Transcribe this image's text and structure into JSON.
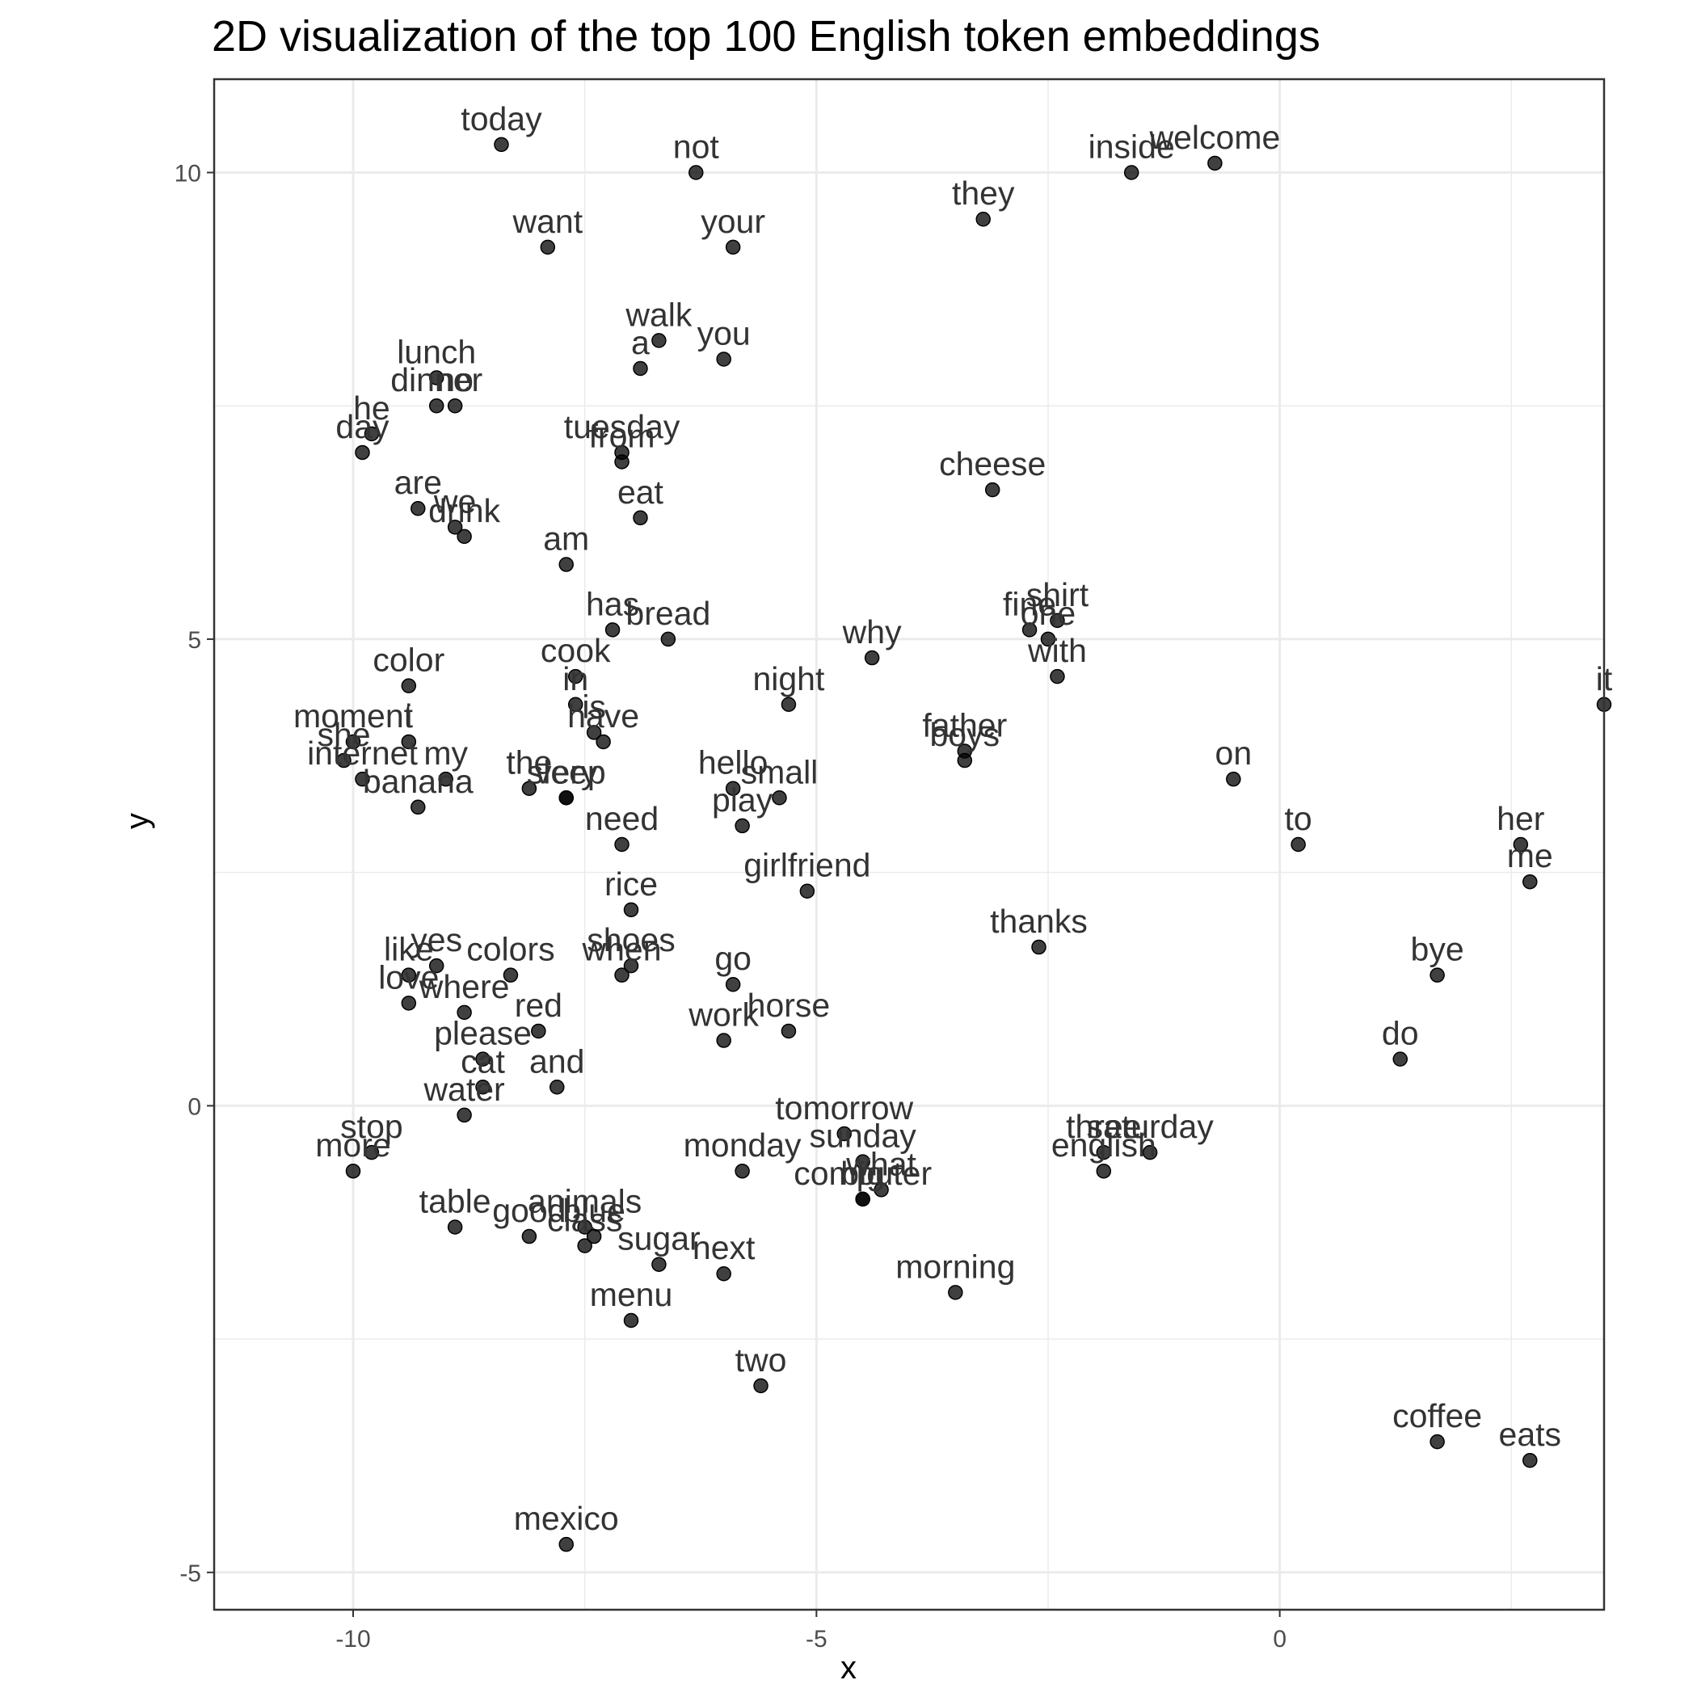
{
  "chart_data": {
    "type": "scatter",
    "title": "2D visualization of the top 100 English token embeddings",
    "xlabel": "x",
    "ylabel": "y",
    "xlim": [
      -11.5,
      3.5
    ],
    "ylim": [
      -5.4,
      11
    ],
    "xticks": [
      -10,
      -5,
      0
    ],
    "yticks": [
      -5,
      0,
      5,
      10
    ],
    "grid": true,
    "points": [
      {
        "label": "today",
        "x": -8.4,
        "y": 10.3
      },
      {
        "label": "not",
        "x": -6.3,
        "y": 10.0
      },
      {
        "label": "welcome",
        "x": -0.7,
        "y": 10.1
      },
      {
        "label": "inside",
        "x": -1.6,
        "y": 10.0
      },
      {
        "label": "they",
        "x": -3.2,
        "y": 9.5
      },
      {
        "label": "want",
        "x": -7.9,
        "y": 9.2
      },
      {
        "label": "your",
        "x": -5.9,
        "y": 9.2
      },
      {
        "label": "walk",
        "x": -6.7,
        "y": 8.2
      },
      {
        "label": "you",
        "x": -6.0,
        "y": 8.0
      },
      {
        "label": "a",
        "x": -6.9,
        "y": 7.9
      },
      {
        "label": "lunch",
        "x": -9.1,
        "y": 7.8
      },
      {
        "label": "no",
        "x": -8.9,
        "y": 7.5
      },
      {
        "label": "he",
        "x": -9.8,
        "y": 7.2
      },
      {
        "label": "dinner",
        "x": -9.1,
        "y": 7.5
      },
      {
        "label": "day",
        "x": -9.9,
        "y": 7.0
      },
      {
        "label": "tuesday",
        "x": -7.1,
        "y": 7.0
      },
      {
        "label": "from",
        "x": -7.1,
        "y": 6.9
      },
      {
        "label": "cheese",
        "x": -3.1,
        "y": 6.6
      },
      {
        "label": "are",
        "x": -9.3,
        "y": 6.4
      },
      {
        "label": "eat",
        "x": -6.9,
        "y": 6.3
      },
      {
        "label": "we",
        "x": -8.9,
        "y": 6.2
      },
      {
        "label": "drink",
        "x": -8.8,
        "y": 6.1
      },
      {
        "label": "am",
        "x": -7.7,
        "y": 5.8
      },
      {
        "label": "has",
        "x": -7.2,
        "y": 5.1
      },
      {
        "label": "bread",
        "x": -6.6,
        "y": 5.0
      },
      {
        "label": "fine",
        "x": -2.7,
        "y": 5.1
      },
      {
        "label": "shirt",
        "x": -2.4,
        "y": 5.2
      },
      {
        "label": "one",
        "x": -2.5,
        "y": 5.0
      },
      {
        "label": "why",
        "x": -4.4,
        "y": 4.8
      },
      {
        "label": "with",
        "x": -2.4,
        "y": 4.6
      },
      {
        "label": "cook",
        "x": -7.6,
        "y": 4.6
      },
      {
        "label": "in",
        "x": -7.6,
        "y": 4.3
      },
      {
        "label": "color",
        "x": -9.4,
        "y": 4.5
      },
      {
        "label": "night",
        "x": -5.3,
        "y": 4.3
      },
      {
        "label": "it",
        "x": 3.5,
        "y": 4.3
      },
      {
        "label": "is",
        "x": -7.4,
        "y": 4.0
      },
      {
        "label": "the",
        "x": -8.1,
        "y": 3.4
      },
      {
        "label": "have",
        "x": -7.3,
        "y": 3.9
      },
      {
        "label": "moment",
        "x": -10.0,
        "y": 3.9
      },
      {
        "label": "i",
        "x": -9.4,
        "y": 3.9
      },
      {
        "label": "father",
        "x": -3.4,
        "y": 3.8
      },
      {
        "label": "hello",
        "x": -5.9,
        "y": 3.4
      },
      {
        "label": "boys",
        "x": -3.4,
        "y": 3.7
      },
      {
        "label": "on",
        "x": -0.5,
        "y": 3.5
      },
      {
        "label": "she",
        "x": -10.1,
        "y": 3.7
      },
      {
        "label": "internet",
        "x": -9.9,
        "y": 3.5
      },
      {
        "label": "very",
        "x": -7.7,
        "y": 3.3
      },
      {
        "label": "my",
        "x": -9.0,
        "y": 3.5
      },
      {
        "label": "small",
        "x": -5.4,
        "y": 3.3
      },
      {
        "label": "banana",
        "x": -9.3,
        "y": 3.2
      },
      {
        "label": "sleep",
        "x": -7.7,
        "y": 3.3
      },
      {
        "label": "need",
        "x": -7.1,
        "y": 2.8
      },
      {
        "label": "play",
        "x": -5.8,
        "y": 3.0
      },
      {
        "label": "to",
        "x": 0.2,
        "y": 2.8
      },
      {
        "label": "her",
        "x": 2.6,
        "y": 2.8
      },
      {
        "label": "me",
        "x": 2.7,
        "y": 2.4
      },
      {
        "label": "girlfriend",
        "x": -5.1,
        "y": 2.3
      },
      {
        "label": "rice",
        "x": -7.0,
        "y": 2.1
      },
      {
        "label": "thanks",
        "x": -2.6,
        "y": 1.7
      },
      {
        "label": "like",
        "x": -9.4,
        "y": 1.4
      },
      {
        "label": "yes",
        "x": -9.1,
        "y": 1.5
      },
      {
        "label": "colors",
        "x": -8.3,
        "y": 1.4
      },
      {
        "label": "shoes",
        "x": -7.0,
        "y": 1.5
      },
      {
        "label": "when",
        "x": -7.1,
        "y": 1.4
      },
      {
        "label": "go",
        "x": -5.9,
        "y": 1.3
      },
      {
        "label": "bye",
        "x": 1.7,
        "y": 1.4
      },
      {
        "label": "love",
        "x": -9.4,
        "y": 1.1
      },
      {
        "label": "where",
        "x": -8.8,
        "y": 1.0
      },
      {
        "label": "please",
        "x": -8.6,
        "y": 0.5
      },
      {
        "label": "red",
        "x": -8.0,
        "y": 0.8
      },
      {
        "label": "work",
        "x": -6.0,
        "y": 0.7
      },
      {
        "label": "horse",
        "x": -5.3,
        "y": 0.8
      },
      {
        "label": "do",
        "x": 1.3,
        "y": 0.5
      },
      {
        "label": "tomorrow",
        "x": -4.7,
        "y": -0.3
      },
      {
        "label": "cat",
        "x": -8.6,
        "y": 0.2
      },
      {
        "label": "and",
        "x": -7.8,
        "y": 0.2
      },
      {
        "label": "water",
        "x": -8.8,
        "y": -0.1
      },
      {
        "label": "monday",
        "x": -5.8,
        "y": -0.7
      },
      {
        "label": "sunday",
        "x": -4.5,
        "y": -0.6
      },
      {
        "label": "three",
        "x": -1.9,
        "y": -0.5
      },
      {
        "label": "saturday",
        "x": -1.4,
        "y": -0.5
      },
      {
        "label": "stop",
        "x": -9.8,
        "y": -0.5
      },
      {
        "label": "more",
        "x": -10.0,
        "y": -0.7
      },
      {
        "label": "what",
        "x": -4.3,
        "y": -0.9
      },
      {
        "label": "english",
        "x": -1.9,
        "y": -0.7
      },
      {
        "label": "animals",
        "x": -7.5,
        "y": -1.3
      },
      {
        "label": "computer",
        "x": -4.5,
        "y": -1.0
      },
      {
        "label": "big",
        "x": -4.5,
        "y": -1.0
      },
      {
        "label": "table",
        "x": -8.9,
        "y": -1.3
      },
      {
        "label": "good",
        "x": -8.1,
        "y": -1.4
      },
      {
        "label": "class",
        "x": -7.5,
        "y": -1.5
      },
      {
        "label": "blue",
        "x": -7.4,
        "y": -1.4
      },
      {
        "label": "sugar",
        "x": -6.7,
        "y": -1.7
      },
      {
        "label": "next",
        "x": -6.0,
        "y": -1.8
      },
      {
        "label": "menu",
        "x": -7.0,
        "y": -2.3
      },
      {
        "label": "morning",
        "x": -3.5,
        "y": -2.0
      },
      {
        "label": "two",
        "x": -5.6,
        "y": -3.0
      },
      {
        "label": "coffee",
        "x": 1.7,
        "y": -3.6
      },
      {
        "label": "eats",
        "x": 2.7,
        "y": -3.8
      },
      {
        "label": "mexico",
        "x": -7.7,
        "y": -4.7
      }
    ]
  }
}
